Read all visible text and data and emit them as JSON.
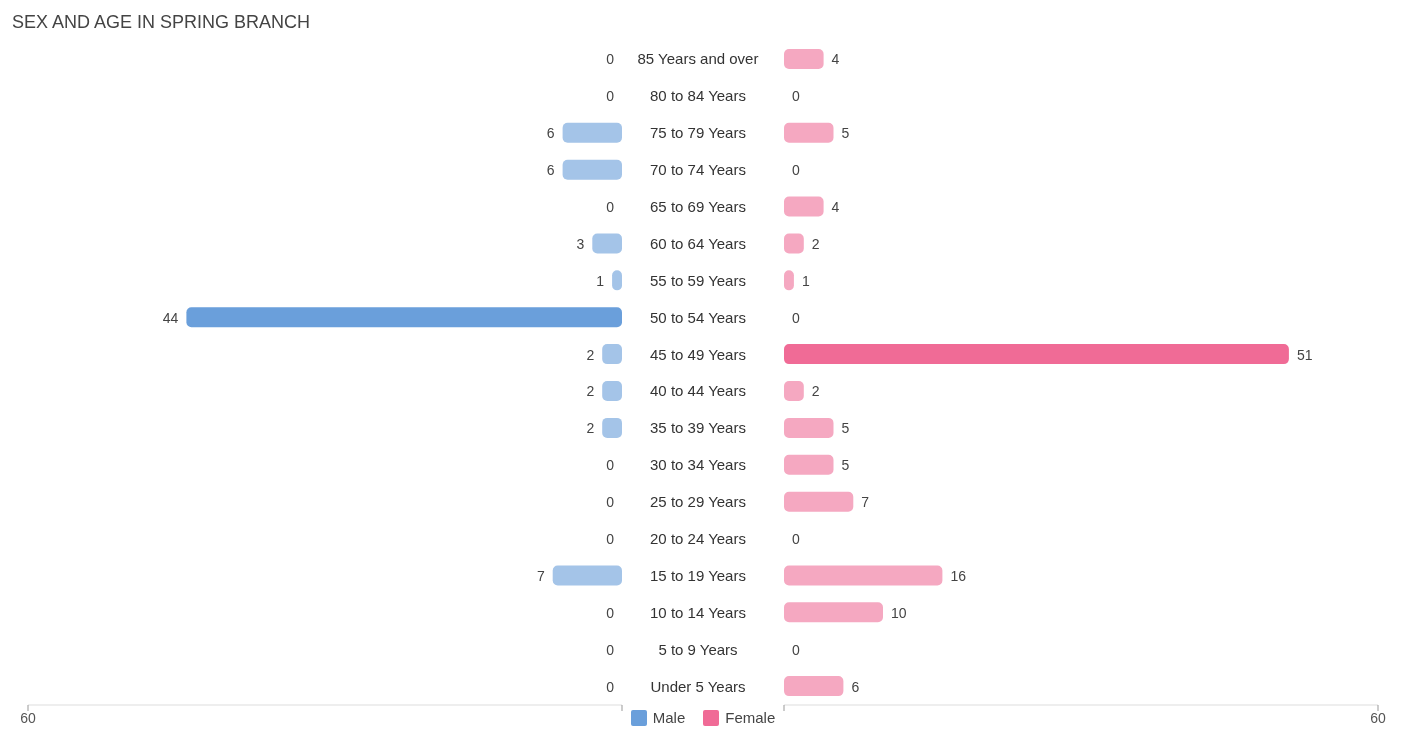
{
  "chart_data": [
    {
      "type": "bar",
      "orientation": "horizontal",
      "title": "SEX AND AGE IN SPRING BRANCH",
      "categories": [
        "85 Years and over",
        "80 to 84 Years",
        "75 to 79 Years",
        "70 to 74 Years",
        "65 to 69 Years",
        "60 to 64 Years",
        "55 to 59 Years",
        "50 to 54 Years",
        "45 to 49 Years",
        "40 to 44 Years",
        "35 to 39 Years",
        "30 to 34 Years",
        "25 to 29 Years",
        "20 to 24 Years",
        "15 to 19 Years",
        "10 to 14 Years",
        "5 to 9 Years",
        "Under 5 Years"
      ],
      "series": [
        {
          "name": "Male",
          "color": "#6a9fdb",
          "colors": [
            "#a4c4e8",
            "#a4c4e8",
            "#a4c4e8",
            "#a4c4e8",
            "#a4c4e8",
            "#a4c4e8",
            "#a4c4e8",
            "#6a9fdb",
            "#a4c4e8",
            "#a4c4e8",
            "#a4c4e8",
            "#a4c4e8",
            "#a4c4e8",
            "#a4c4e8",
            "#a4c4e8",
            "#a4c4e8",
            "#a4c4e8",
            "#a4c4e8"
          ],
          "values": [
            0,
            0,
            6,
            6,
            0,
            3,
            1,
            44,
            2,
            2,
            2,
            0,
            0,
            0,
            7,
            0,
            0,
            0
          ]
        }
      ],
      "xlim": [
        60,
        0
      ],
      "xticks": [
        60,
        {
          "value": 0,
          "label": null
        }
      ],
      "data_labels": true,
      "grid": false,
      "legend": "bottom"
    },
    {
      "type": "bar",
      "orientation": "horizontal",
      "categories": [
        null,
        null,
        null,
        null,
        null,
        null,
        null,
        null,
        null,
        null,
        null,
        null,
        null,
        null,
        null,
        null,
        null,
        null
      ],
      "series": [
        {
          "name": "Female",
          "color": "#f06b96",
          "colors": [
            "#f5a8c1",
            "#f5a8c1",
            "#f5a8c1",
            "#f5a8c1",
            "#f5a8c1",
            "#f5a8c1",
            "#f5a8c1",
            "#f5a8c1",
            "#f06b96",
            "#f5a8c1",
            "#f5a8c1",
            "#f5a8c1",
            "#f5a8c1",
            "#f5a8c1",
            "#f5a8c1",
            "#f5a8c1",
            "#f5a8c1",
            "#f5a8c1"
          ],
          "values": [
            4,
            0,
            5,
            0,
            4,
            2,
            1,
            0,
            51,
            2,
            5,
            5,
            7,
            0,
            16,
            10,
            0,
            6
          ]
        }
      ],
      "xlim": [
        0,
        60
      ],
      "xticks": [
        {
          "value": 0,
          "label": null
        },
        60
      ],
      "data_labels": true,
      "grid": false,
      "legend": "bottom",
      "tick_labels": "x"
    }
  ]
}
